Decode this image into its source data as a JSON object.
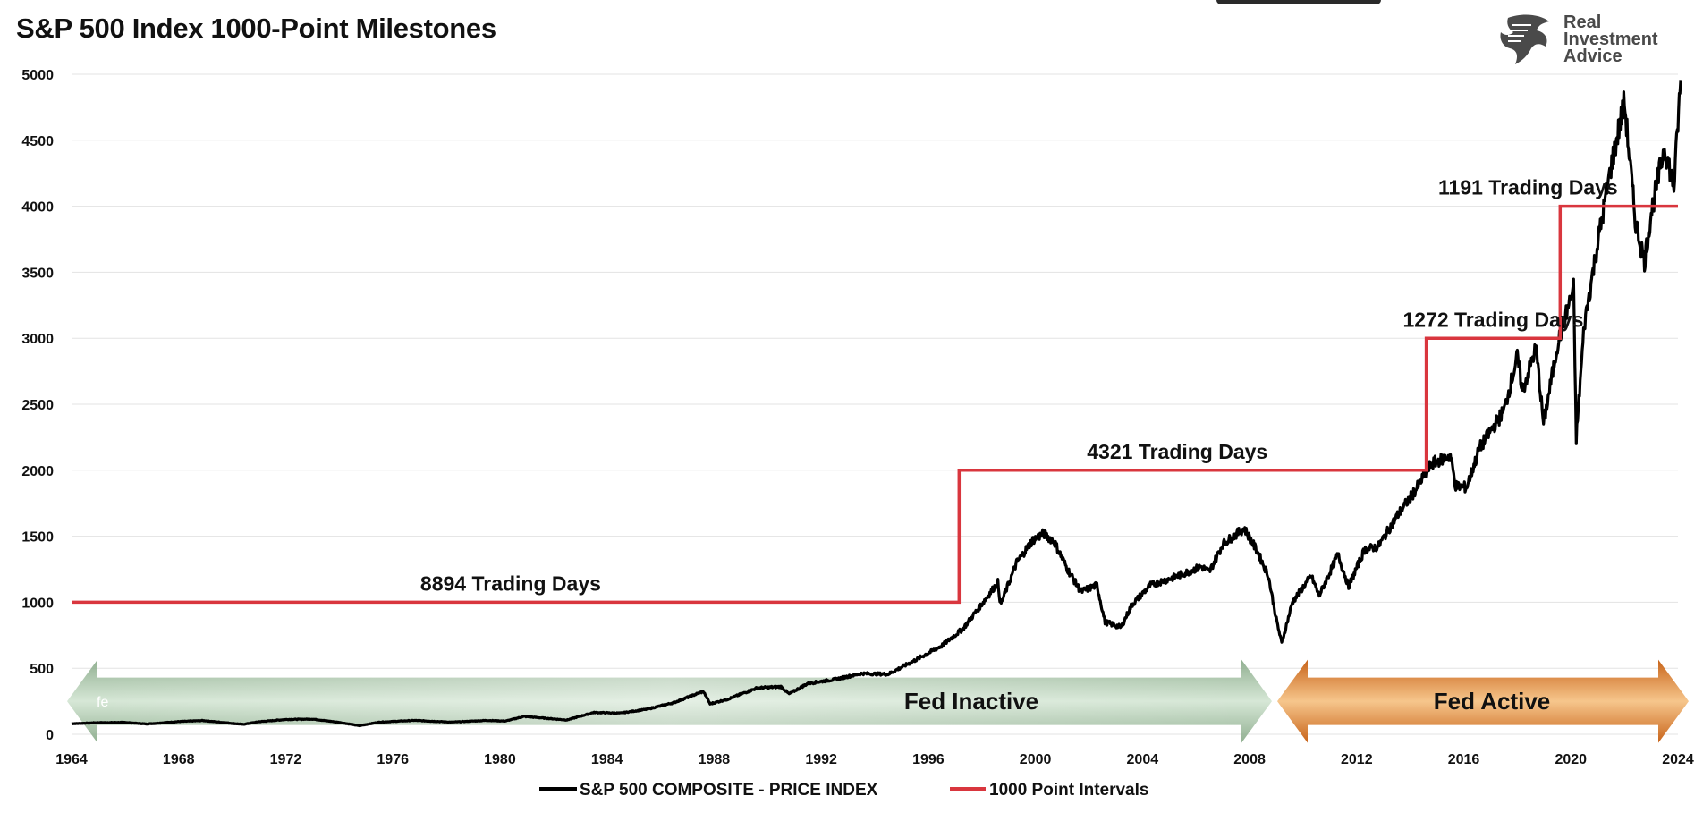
{
  "chart_data": {
    "type": "line",
    "title": "S&P 500 Index 1000-Point Milestones",
    "xlim": [
      1964,
      2024
    ],
    "ylim": [
      0,
      5000
    ],
    "x_ticks": [
      "1964",
      "1968",
      "1972",
      "1976",
      "1980",
      "1984",
      "1988",
      "1992",
      "1996",
      "2000",
      "2004",
      "2008",
      "2012",
      "2016",
      "2020",
      "2024"
    ],
    "y_ticks": [
      "0",
      "500",
      "1000",
      "1500",
      "2000",
      "2500",
      "3000",
      "3500",
      "4000",
      "4500",
      "5000"
    ],
    "grid": "horizontal",
    "legend": [
      "S&P 500 COMPOSITE - PRICE INDEX",
      "1000 Point Intervals"
    ],
    "series": [
      {
        "name": "S&P 500 COMPOSITE - PRICE INDEX",
        "color": "#000000",
        "points": [
          [
            1964.0,
            80
          ],
          [
            1965.0,
            88
          ],
          [
            1966.0,
            90
          ],
          [
            1966.8,
            78
          ],
          [
            1968.0,
            96
          ],
          [
            1968.9,
            104
          ],
          [
            1970.4,
            75
          ],
          [
            1971.0,
            95
          ],
          [
            1972.0,
            112
          ],
          [
            1973.0,
            115
          ],
          [
            1974.0,
            90
          ],
          [
            1974.75,
            65
          ],
          [
            1975.5,
            92
          ],
          [
            1976.8,
            105
          ],
          [
            1978.2,
            92
          ],
          [
            1979.5,
            105
          ],
          [
            1980.2,
            100
          ],
          [
            1980.9,
            135
          ],
          [
            1982.5,
            108
          ],
          [
            1983.5,
            165
          ],
          [
            1984.5,
            160
          ],
          [
            1985.5,
            190
          ],
          [
            1986.5,
            240
          ],
          [
            1987.6,
            325
          ],
          [
            1987.85,
            230
          ],
          [
            1988.5,
            265
          ],
          [
            1989.6,
            350
          ],
          [
            1990.5,
            360
          ],
          [
            1990.8,
            305
          ],
          [
            1991.5,
            385
          ],
          [
            1992.5,
            415
          ],
          [
            1993.5,
            460
          ],
          [
            1994.5,
            455
          ],
          [
            1995.5,
            560
          ],
          [
            1996.5,
            670
          ],
          [
            1997.3,
            800
          ],
          [
            1997.9,
            960
          ],
          [
            1998.6,
            1150
          ],
          [
            1998.7,
            980
          ],
          [
            1999.3,
            1300
          ],
          [
            1999.9,
            1470
          ],
          [
            2000.3,
            1520
          ],
          [
            2000.7,
            1460
          ],
          [
            2001.2,
            1250
          ],
          [
            2001.7,
            1080
          ],
          [
            2002.3,
            1130
          ],
          [
            2002.6,
            850
          ],
          [
            2003.2,
            810
          ],
          [
            2003.6,
            980
          ],
          [
            2004.3,
            1130
          ],
          [
            2005.2,
            1190
          ],
          [
            2006.2,
            1270
          ],
          [
            2006.5,
            1230
          ],
          [
            2007.0,
            1440
          ],
          [
            2007.8,
            1560
          ],
          [
            2008.3,
            1380
          ],
          [
            2008.7,
            1200
          ],
          [
            2009.0,
            870
          ],
          [
            2009.2,
            690
          ],
          [
            2009.6,
            1000
          ],
          [
            2010.3,
            1200
          ],
          [
            2010.6,
            1050
          ],
          [
            2011.3,
            1360
          ],
          [
            2011.7,
            1120
          ],
          [
            2012.3,
            1400
          ],
          [
            2012.8,
            1420
          ],
          [
            2013.5,
            1650
          ],
          [
            2014.2,
            1850
          ],
          [
            2014.8,
            2050
          ],
          [
            2015.5,
            2110
          ],
          [
            2015.7,
            1880
          ],
          [
            2016.1,
            1870
          ],
          [
            2016.6,
            2170
          ],
          [
            2017.5,
            2450
          ],
          [
            2018.0,
            2860
          ],
          [
            2018.2,
            2600
          ],
          [
            2018.7,
            2930
          ],
          [
            2018.98,
            2350
          ],
          [
            2019.5,
            2950
          ],
          [
            2020.1,
            3380
          ],
          [
            2020.2,
            2240
          ],
          [
            2020.5,
            3100
          ],
          [
            2020.9,
            3600
          ],
          [
            2021.5,
            4300
          ],
          [
            2022.0,
            4790
          ],
          [
            2022.4,
            3900
          ],
          [
            2022.75,
            3580
          ],
          [
            2023.0,
            3950
          ],
          [
            2023.5,
            4450
          ],
          [
            2023.85,
            4150
          ],
          [
            2024.1,
            4950
          ]
        ]
      },
      {
        "name": "1000 Point Intervals",
        "color": "#d9363e",
        "points": [
          [
            1964.0,
            1000
          ],
          [
            1997.15,
            1000
          ],
          [
            1997.15,
            2000
          ],
          [
            2014.6,
            2000
          ],
          [
            2014.6,
            3000
          ],
          [
            2019.6,
            3000
          ],
          [
            2019.6,
            4000
          ],
          [
            2024.0,
            4000
          ]
        ]
      }
    ],
    "annotations": [
      {
        "text": "8894 Trading Days",
        "x": 1980.4,
        "y": 1060
      },
      {
        "text": "4321 Trading Days",
        "x": 2005.3,
        "y": 2060
      },
      {
        "text": "1272 Trading Days",
        "x": 2017.1,
        "y": 3060
      },
      {
        "text": "1191 Trading Days",
        "x": 2018.4,
        "y": 4060
      }
    ],
    "regions": [
      {
        "label": "Fed Inactive",
        "x": [
          1964.0,
          2008.5
        ],
        "sublabel": "fe"
      },
      {
        "label": "Fed Active",
        "x": [
          2008.5,
          2024.5
        ]
      }
    ]
  },
  "logo": {
    "line1": "Real",
    "line2": "Investment",
    "line3": "Advice"
  },
  "colors": {
    "price": "#000000",
    "intervals": "#d9363e",
    "fed_inactive": "#8aae8a",
    "fed_active": "#d4761e"
  }
}
